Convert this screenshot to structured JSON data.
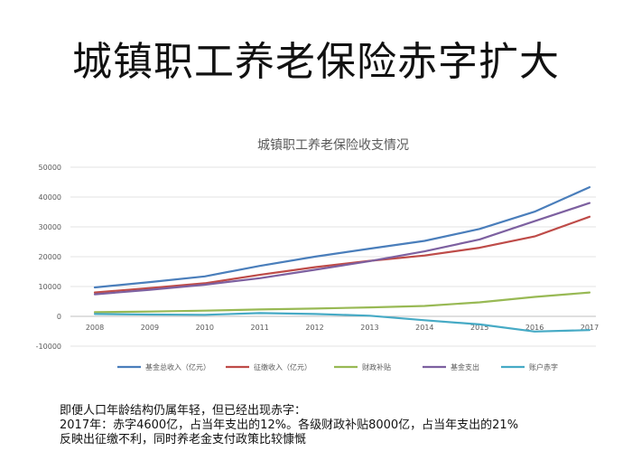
{
  "slide": {
    "title": "城镇职工养老保险赤字扩大",
    "notes": [
      "即便人口年龄结构仍属年轻，但已经出现赤字：",
      "2017年：赤字4600亿，占当年支出的12%。各级财政补贴8000亿，占当年支出的21%",
      "反映出征缴不利，同时养老金支付政策比较慷慨"
    ]
  },
  "chart_data": {
    "type": "line",
    "title": "城镇职工养老保险收支情况",
    "xlabel": "",
    "ylabel": "",
    "x": [
      "2008",
      "2009",
      "2010",
      "2011",
      "2012",
      "2013",
      "2014",
      "2015",
      "2016",
      "2017"
    ],
    "ylim": [
      -10000,
      50000
    ],
    "yticks": [
      "50000",
      "40000",
      "30000",
      "20000",
      "10000",
      "0",
      "-10000"
    ],
    "ytick_values": [
      50000,
      40000,
      30000,
      20000,
      10000,
      0,
      -10000
    ],
    "grid": true,
    "legend_position": "bottom",
    "series": [
      {
        "name": "基金总收入（亿元）",
        "color": "#4a7ebb",
        "values": [
          9700,
          11500,
          13400,
          16900,
          20000,
          22700,
          25300,
          29300,
          35100,
          43300
        ]
      },
      {
        "name": "征缴收入（亿元）",
        "color": "#be4b48",
        "values": [
          8000,
          9500,
          11100,
          13900,
          16500,
          18600,
          20400,
          23000,
          26800,
          33400
        ]
      },
      {
        "name": "财政补贴",
        "color": "#98b954",
        "values": [
          1400,
          1600,
          1900,
          2300,
          2600,
          3000,
          3500,
          4700,
          6500,
          8000
        ]
      },
      {
        "name": "基金支出",
        "color": "#7d60a0",
        "values": [
          7400,
          8900,
          10600,
          12800,
          15600,
          18500,
          21800,
          25800,
          31900,
          38000
        ]
      },
      {
        "name": "账户赤字",
        "color": "#46aac5",
        "values": [
          800,
          600,
          500,
          1100,
          800,
          200,
          -1300,
          -2700,
          -5100,
          -4600
        ]
      }
    ]
  }
}
